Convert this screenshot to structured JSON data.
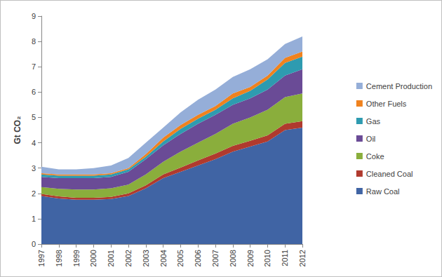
{
  "chart_data": {
    "type": "area",
    "y_label": "Gt CO₂",
    "categories": [
      "1997",
      "1998",
      "1999",
      "2000",
      "2001",
      "2002",
      "2003",
      "2004",
      "2005",
      "2006",
      "2007",
      "2008",
      "2009",
      "2010",
      "2011",
      "2012"
    ],
    "series": [
      {
        "name": "Raw Coal",
        "color": "#4064A4",
        "values": [
          1.9,
          1.8,
          1.75,
          1.75,
          1.78,
          1.9,
          2.2,
          2.6,
          2.85,
          3.1,
          3.35,
          3.65,
          3.85,
          4.05,
          4.5,
          4.6
        ]
      },
      {
        "name": "Cleaned Coal",
        "color": "#B03A2E",
        "values": [
          0.08,
          0.08,
          0.08,
          0.08,
          0.08,
          0.1,
          0.12,
          0.15,
          0.17,
          0.2,
          0.22,
          0.23,
          0.23,
          0.24,
          0.25,
          0.25
        ]
      },
      {
        "name": "Coke",
        "color": "#8AAE3C",
        "values": [
          0.27,
          0.3,
          0.32,
          0.32,
          0.34,
          0.35,
          0.43,
          0.5,
          0.63,
          0.7,
          0.78,
          0.87,
          0.92,
          1.01,
          1.05,
          1.1
        ]
      },
      {
        "name": "Oil",
        "color": "#6A4B96",
        "values": [
          0.4,
          0.42,
          0.45,
          0.45,
          0.45,
          0.5,
          0.6,
          0.65,
          0.7,
          0.75,
          0.75,
          0.75,
          0.75,
          0.8,
          0.85,
          0.95
        ]
      },
      {
        "name": "Gas",
        "color": "#2E9BB0",
        "values": [
          0.1,
          0.1,
          0.1,
          0.1,
          0.1,
          0.1,
          0.1,
          0.15,
          0.2,
          0.2,
          0.2,
          0.25,
          0.3,
          0.4,
          0.5,
          0.5
        ]
      },
      {
        "name": "Other Fuels",
        "color": "#F0821E",
        "values": [
          0.05,
          0.05,
          0.05,
          0.05,
          0.05,
          0.05,
          0.1,
          0.15,
          0.15,
          0.15,
          0.15,
          0.2,
          0.15,
          0.15,
          0.2,
          0.2
        ]
      },
      {
        "name": "Cement Production",
        "color": "#95AED8",
        "values": [
          0.25,
          0.2,
          0.2,
          0.25,
          0.3,
          0.4,
          0.45,
          0.4,
          0.5,
          0.6,
          0.65,
          0.65,
          0.7,
          0.65,
          0.55,
          0.6
        ]
      }
    ],
    "ylim": [
      0,
      9
    ],
    "yticks": [
      0,
      1,
      2,
      3,
      4,
      5,
      6,
      7,
      8,
      9
    ],
    "stacked": true,
    "grid": false,
    "legend": "right"
  }
}
